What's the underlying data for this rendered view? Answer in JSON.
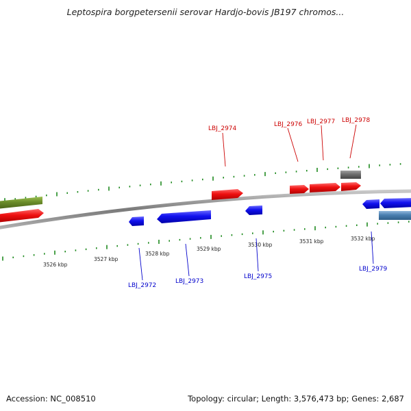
{
  "title": "Leptospira borgpetersenii serovar Hardjo-bovis JB197 chromos...",
  "footer": {
    "accession": "Accession: NC_008510",
    "summary": "Topology: circular; Length: 3,576,473 bp; Genes: 2,687"
  },
  "colors": {
    "forward_gene": "#ee1111",
    "reverse_gene": "#1111ee",
    "other_forward": "#6b8c2a",
    "other_gray": "#6e6e6e",
    "other_reverse": "#4a7fb0",
    "ticks": "#1f8a1f",
    "backbone": "#8a8a8a",
    "forward_label": "#cc0000",
    "reverse_label": "#0000cc"
  },
  "scale": {
    "unit": "kbp",
    "major_ticks": [
      {
        "value": 3526,
        "label": "3526 kbp"
      },
      {
        "value": 3527,
        "label": "3527 kbp"
      },
      {
        "value": 3528,
        "label": "3528 kbp"
      },
      {
        "value": 3529,
        "label": "3529 kbp"
      },
      {
        "value": 3530,
        "label": "3530 kbp"
      },
      {
        "value": 3531,
        "label": "3531 kbp"
      },
      {
        "value": 3532,
        "label": "3532 kbp"
      }
    ]
  },
  "labels": {
    "forward": [
      "LBJ_2974",
      "LBJ_2976",
      "LBJ_2977",
      "LBJ_2978"
    ],
    "reverse": [
      "LBJ_2972",
      "LBJ_2973",
      "LBJ_2975",
      "LBJ_2979"
    ]
  }
}
